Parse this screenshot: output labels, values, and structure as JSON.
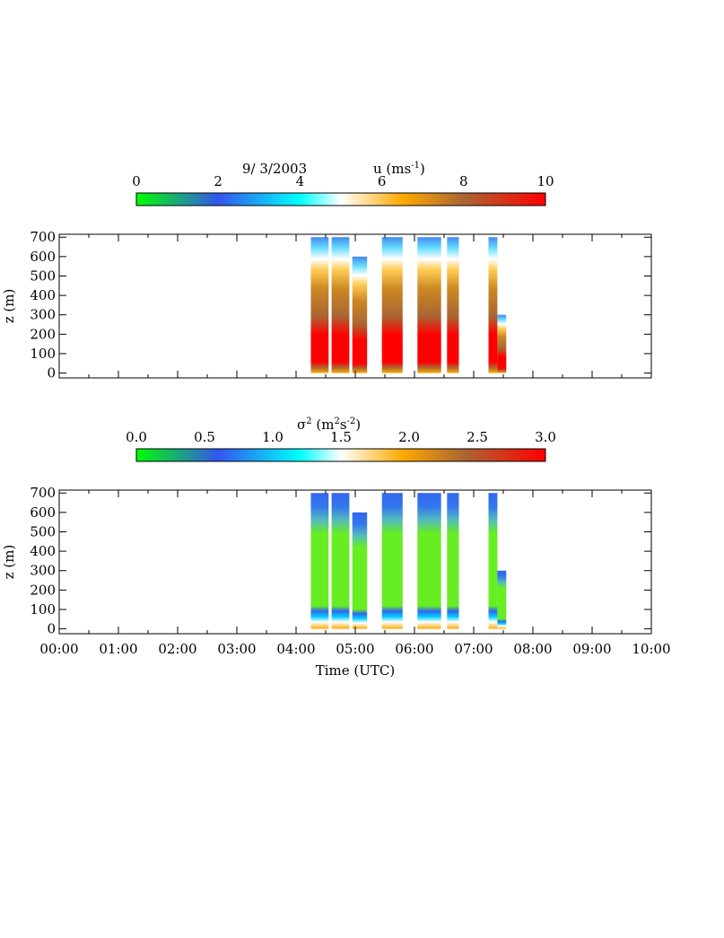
{
  "chart_data": [
    {
      "type": "heatmap",
      "title_date": "9/ 3/2003",
      "title_var": "u (ms",
      "title_unit_exp": "-1",
      "title_close": ")",
      "colorbar": {
        "min": 0,
        "max": 10,
        "ticks": [
          "0",
          "2",
          "4",
          "6",
          "8",
          "10"
        ],
        "tick_values": [
          0,
          2,
          4,
          6,
          8,
          10
        ],
        "colors": [
          "#00ff00",
          "#3355ee",
          "#00ffff",
          "#ffffff",
          "#ffaa00",
          "#aa6633",
          "#ff0000"
        ]
      },
      "ylabel": "z (m)",
      "yticks": [
        "0",
        "100",
        "200",
        "300",
        "400",
        "500",
        "600",
        "700"
      ],
      "ytick_values": [
        0,
        100,
        200,
        300,
        400,
        500,
        600,
        700
      ],
      "ylim": [
        -25,
        715
      ],
      "xlim": [
        0,
        10
      ],
      "data_segments": [
        {
          "start": 4.25,
          "end": 4.55,
          "top": 700
        },
        {
          "start": 4.6,
          "end": 4.9,
          "top": 700
        },
        {
          "start": 4.95,
          "end": 5.2,
          "top": 600
        },
        {
          "start": 5.45,
          "end": 5.8,
          "top": 700
        },
        {
          "start": 6.05,
          "end": 6.45,
          "top": 700
        },
        {
          "start": 6.55,
          "end": 6.75,
          "top": 700
        },
        {
          "start": 7.25,
          "end": 7.4,
          "top": 700
        },
        {
          "start": 7.4,
          "end": 7.55,
          "top": 300
        }
      ]
    },
    {
      "type": "heatmap",
      "title_var": "σ",
      "title_exp": "2",
      "title_open": " (m",
      "title_exp2": "2",
      "title_mid": "s",
      "title_exp3": "-2",
      "title_close": ")",
      "colorbar": {
        "min": 0,
        "max": 3,
        "ticks": [
          "0.0",
          "0.5",
          "1.0",
          "1.5",
          "2.0",
          "2.5",
          "3.0"
        ],
        "tick_values": [
          0,
          0.5,
          1.0,
          1.5,
          2.0,
          2.5,
          3.0
        ],
        "colors": [
          "#00ff00",
          "#3355ee",
          "#00ffff",
          "#ffffff",
          "#ffaa00",
          "#aa6633",
          "#ff0000"
        ]
      },
      "ylabel": "z (m)",
      "yticks": [
        "0",
        "100",
        "200",
        "300",
        "400",
        "500",
        "600",
        "700"
      ],
      "ytick_values": [
        0,
        100,
        200,
        300,
        400,
        500,
        600,
        700
      ],
      "ylim": [
        -25,
        715
      ],
      "xlim": [
        0,
        10
      ],
      "xlabel": "Time (UTC)",
      "xticks": [
        "00:00",
        "01:00",
        "02:00",
        "03:00",
        "04:00",
        "05:00",
        "06:00",
        "07:00",
        "08:00",
        "09:00",
        "10:00"
      ],
      "xtick_values": [
        0,
        1,
        2,
        3,
        4,
        5,
        6,
        7,
        8,
        9,
        10
      ],
      "data_segments": [
        {
          "start": 4.25,
          "end": 4.55,
          "top": 700
        },
        {
          "start": 4.6,
          "end": 4.9,
          "top": 700
        },
        {
          "start": 4.95,
          "end": 5.2,
          "top": 600
        },
        {
          "start": 5.45,
          "end": 5.8,
          "top": 700
        },
        {
          "start": 6.05,
          "end": 6.45,
          "top": 700
        },
        {
          "start": 6.55,
          "end": 6.75,
          "top": 700
        },
        {
          "start": 7.25,
          "end": 7.4,
          "top": 700
        },
        {
          "start": 7.4,
          "end": 7.55,
          "top": 300
        }
      ]
    }
  ]
}
